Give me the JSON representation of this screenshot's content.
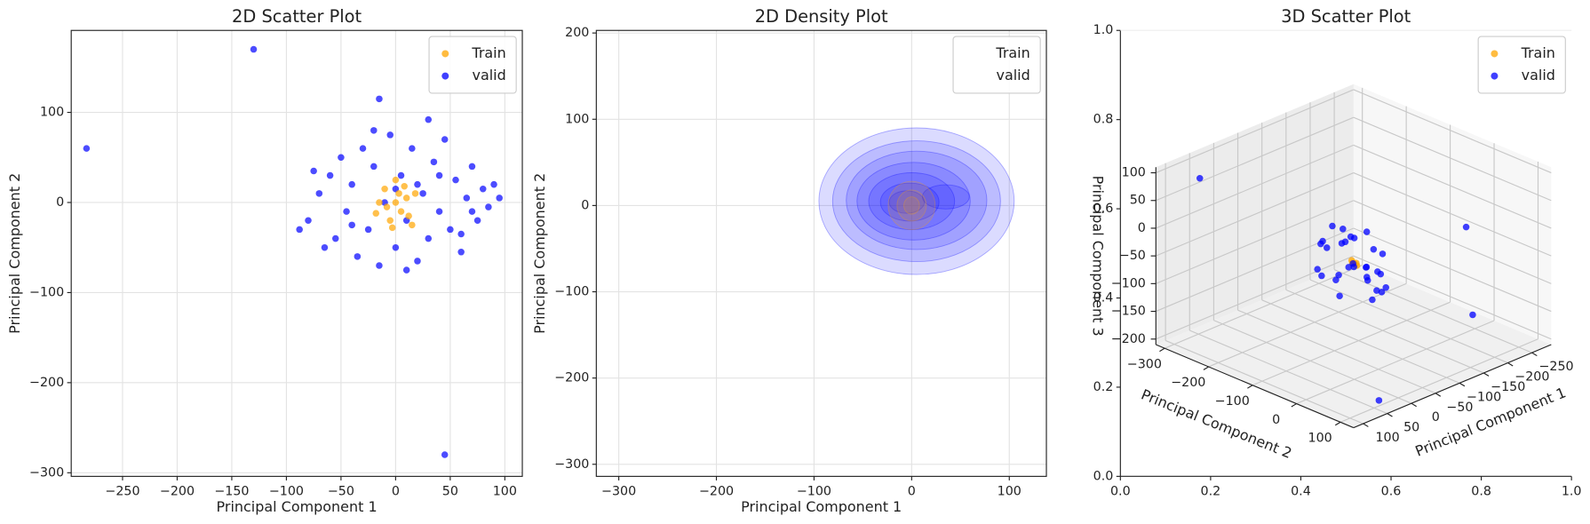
{
  "chart_data": [
    {
      "type": "scatter",
      "title": "2D Scatter Plot",
      "x_label": "Principal Component 1",
      "y_label": "Principal Component 2",
      "xlim": [
        -297,
        116
      ],
      "ylim": [
        -304,
        191
      ],
      "xticks": [
        {
          "value": -250,
          "label": "−250"
        },
        {
          "value": -200,
          "label": "−200"
        },
        {
          "value": -150,
          "label": "−150"
        },
        {
          "value": -100,
          "label": "−100"
        },
        {
          "value": -50,
          "label": "−50"
        },
        0,
        50,
        100
      ],
      "yticks": [
        {
          "value": -300,
          "label": "−300"
        },
        {
          "value": -200,
          "label": "−200"
        },
        {
          "value": -100,
          "label": "−100"
        },
        0,
        100
      ],
      "grid": true,
      "legend": "upper right",
      "series": [
        {
          "name": "Train",
          "color": "#ffa500",
          "x": [
            -10,
            0,
            5,
            -5,
            10,
            15,
            -15,
            0,
            8,
            -8,
            12,
            3,
            -3,
            18,
            -18
          ],
          "y": [
            15,
            25,
            -10,
            -20,
            5,
            -25,
            0,
            0,
            18,
            -5,
            -15,
            10,
            -28,
            10,
            -12
          ]
        },
        {
          "name": "valid",
          "color": "#0000ff",
          "x": [
            -283,
            -130,
            -15,
            30,
            45,
            -80,
            -70,
            -60,
            -55,
            -50,
            -45,
            -40,
            -35,
            -30,
            -25,
            -20,
            -15,
            -10,
            -5,
            0,
            5,
            10,
            15,
            20,
            25,
            30,
            35,
            40,
            45,
            50,
            55,
            60,
            65,
            70,
            75,
            80,
            85,
            90,
            95,
            -88,
            -65,
            -20,
            10,
            40,
            60,
            -75,
            0,
            20,
            -40,
            70
          ],
          "y": [
            60,
            170,
            115,
            92,
            -280,
            -20,
            10,
            30,
            -40,
            50,
            -10,
            20,
            -60,
            60,
            -30,
            40,
            -70,
            0,
            75,
            -50,
            30,
            -20,
            60,
            -65,
            10,
            -40,
            45,
            -10,
            70,
            -30,
            25,
            -55,
            5,
            40,
            -20,
            15,
            -5,
            20,
            5,
            -30,
            -50,
            80,
            -75,
            30,
            -35,
            35,
            15,
            20,
            -25,
            -10
          ]
        }
      ]
    },
    {
      "type": "kde",
      "title": "2D Density Plot",
      "x_label": "Principal Component 1",
      "y_label": "Principal Component 2",
      "xlim": [
        -323,
        138
      ],
      "ylim": [
        -314,
        203
      ],
      "xticks": [
        {
          "value": -300,
          "label": "−300"
        },
        {
          "value": -200,
          "label": "−200"
        },
        {
          "value": -100,
          "label": "−100"
        },
        0,
        100
      ],
      "yticks": [
        {
          "value": -300,
          "label": "−300"
        },
        {
          "value": -200,
          "label": "−200"
        },
        {
          "value": -100,
          "label": "−100"
        },
        0,
        100,
        200
      ],
      "grid": true,
      "legend": "upper right",
      "series": [
        {
          "name": "Train",
          "color": "#ffa500",
          "contours": [
            {
              "cx": 0,
              "cy": 0,
              "rx": 24,
              "ry": 28
            },
            {
              "cx": 0,
              "cy": 0,
              "rx": 15,
              "ry": 18
            },
            {
              "cx": 0,
              "cy": 0,
              "rx": 8,
              "ry": 10
            }
          ]
        },
        {
          "name": "valid",
          "color": "#0000ff",
          "contours": [
            {
              "cx": 5,
              "cy": 5,
              "rx": 100,
              "ry": 85
            },
            {
              "cx": 5,
              "cy": 5,
              "rx": 86,
              "ry": 70
            },
            {
              "cx": 5,
              "cy": 6,
              "rx": 72,
              "ry": 57
            },
            {
              "cx": 2,
              "cy": 5,
              "rx": 58,
              "ry": 45
            },
            {
              "cx": 0,
              "cy": 5,
              "rx": 44,
              "ry": 33
            },
            {
              "cx": 35,
              "cy": 10,
              "rx": 24,
              "ry": 14
            },
            {
              "cx": -2,
              "cy": 4,
              "rx": 30,
              "ry": 22
            },
            {
              "cx": -5,
              "cy": 4,
              "rx": 18,
              "ry": 13
            }
          ]
        }
      ]
    },
    {
      "type": "scatter3d",
      "title": "3D Scatter Plot",
      "x_label": "Principal Component 1",
      "y_label": "Principal Component 2",
      "z_label": "Principal Component 3",
      "panel_xlim": [
        0,
        1
      ],
      "panel_ylim": [
        0,
        1
      ],
      "panel_xticks": [
        {
          "value": 0,
          "label": "0.0"
        },
        0.2,
        0.4,
        0.6,
        0.8,
        {
          "value": 1,
          "label": "1.0"
        }
      ],
      "panel_yticks": [
        {
          "value": 0,
          "label": "0.0"
        },
        0.2,
        0.4,
        0.6,
        0.8,
        {
          "value": 1,
          "label": "1.0"
        }
      ],
      "xlim": [
        -290,
        120
      ],
      "ylim": [
        -320,
        130
      ],
      "zlim": [
        -210,
        110
      ],
      "xticks": [
        {
          "value": -250,
          "label": "−250"
        },
        {
          "value": -200,
          "label": "−200"
        },
        {
          "value": -150,
          "label": "−150"
        },
        {
          "value": -100,
          "label": "−100"
        },
        {
          "value": -50,
          "label": "−50"
        },
        0,
        50,
        100
      ],
      "yticks": [
        {
          "value": -300,
          "label": "−300"
        },
        {
          "value": -200,
          "label": "−200"
        },
        {
          "value": -100,
          "label": "−100"
        },
        0,
        100
      ],
      "zticks": [
        100,
        50,
        0,
        {
          "value": -50,
          "label": "−50"
        },
        {
          "value": -100,
          "label": "−100"
        },
        {
          "value": -150,
          "label": "−150"
        },
        {
          "value": -200,
          "label": "−200"
        }
      ],
      "grid": true,
      "legend": "upper right",
      "series": [
        {
          "name": "Train",
          "color": "#ffa500",
          "x": [
            0,
            5,
            -5,
            10,
            -10
          ],
          "y": [
            0,
            10,
            -10,
            5,
            -5
          ],
          "z": [
            0,
            5,
            -5,
            10,
            -10
          ]
        },
        {
          "name": "valid",
          "color": "#0000ff",
          "x": [
            58,
            -200,
            -150,
            40,
            -40,
            -30,
            -20,
            -10,
            0,
            10,
            20,
            30,
            40,
            -35,
            -25,
            -15,
            -5,
            5,
            15,
            25,
            35,
            -45,
            45,
            0,
            -20,
            20,
            -30,
            30,
            10,
            -10,
            0,
            15,
            -15,
            5
          ],
          "y": [
            -288,
            50,
            90,
            100,
            0,
            20,
            -30,
            40,
            -50,
            10,
            -20,
            30,
            -40,
            -10,
            35,
            -45,
            25,
            -15,
            45,
            -35,
            5,
            15,
            -25,
            0,
            50,
            -50,
            -5,
            20,
            -15,
            30,
            60,
            -60,
            10,
            -30
          ],
          "z": [
            78,
            -150,
            40,
            -200,
            10,
            -20,
            30,
            -40,
            50,
            0,
            -30,
            20,
            -10,
            40,
            -50,
            15,
            -25,
            35,
            -5,
            25,
            -45,
            5,
            -15,
            45,
            -35,
            30,
            -20,
            10,
            60,
            -60,
            0,
            20,
            -10,
            -30
          ]
        }
      ]
    }
  ]
}
